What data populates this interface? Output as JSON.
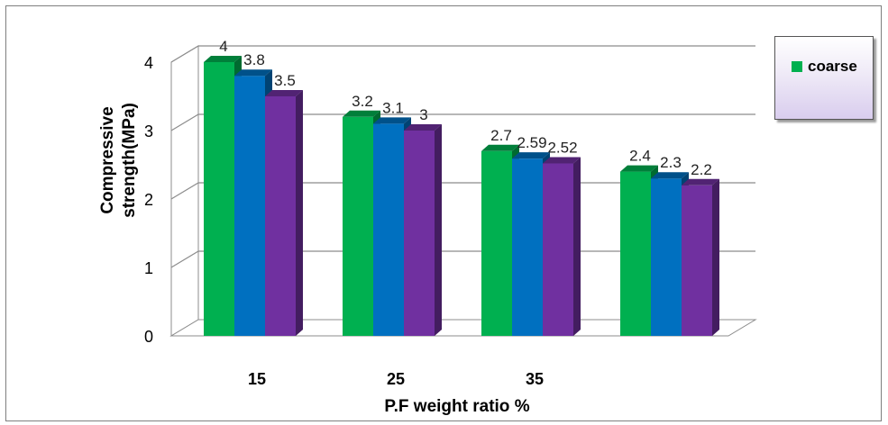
{
  "colors": {
    "series_1": "#00b050",
    "series_2": "#0070c0",
    "series_3": "#7030a0",
    "gridline": "#8c8c8c"
  },
  "legend": {
    "label": "coarse",
    "placement": "top-right"
  },
  "chart_data": {
    "type": "bar",
    "style": "3d-clustered-column",
    "categories": [
      "15",
      "25",
      "35",
      ""
    ],
    "series": [
      {
        "name": "coarse",
        "values": [
          4,
          3.2,
          2.7,
          2.4
        ],
        "labels": [
          "4",
          "3.2",
          "2.7",
          "2.4"
        ]
      },
      {
        "values": [
          3.8,
          3.1,
          2.59,
          2.3
        ],
        "labels": [
          "3.8",
          "3.1",
          "2.59",
          "2.3"
        ]
      },
      {
        "values": [
          3.5,
          3,
          2.52,
          2.2
        ],
        "labels": [
          "3.5",
          "3",
          "2.52",
          "2.2"
        ]
      }
    ],
    "yticks": [
      "0",
      "1",
      "2",
      "3",
      "4"
    ],
    "ylim": [
      0,
      4
    ],
    "xlabel": "P.F weight ratio %",
    "ylabel_lines": [
      "Compressive",
      "strength(MPa)"
    ],
    "grid": true
  }
}
